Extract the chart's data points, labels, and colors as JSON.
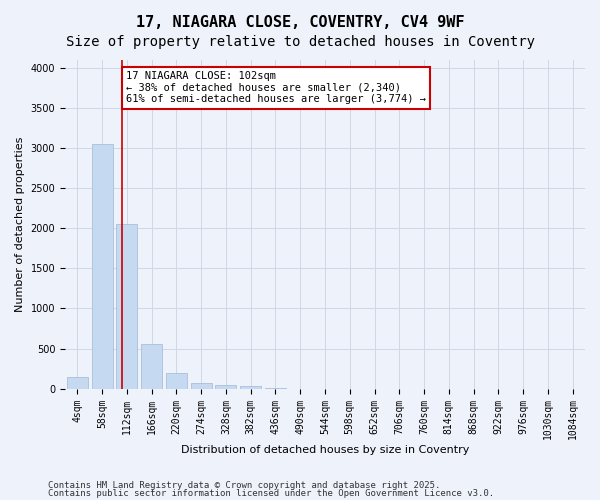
{
  "title1": "17, NIAGARA CLOSE, COVENTRY, CV4 9WF",
  "title2": "Size of property relative to detached houses in Coventry",
  "xlabel": "Distribution of detached houses by size in Coventry",
  "ylabel": "Number of detached properties",
  "bin_labels": [
    "4sqm",
    "58sqm",
    "112sqm",
    "166sqm",
    "220sqm",
    "274sqm",
    "328sqm",
    "382sqm",
    "436sqm",
    "490sqm",
    "544sqm",
    "598sqm",
    "652sqm",
    "706sqm",
    "760sqm",
    "814sqm",
    "868sqm",
    "922sqm",
    "976sqm",
    "1030sqm",
    "1084sqm"
  ],
  "bar_values": [
    150,
    3050,
    2050,
    560,
    190,
    75,
    50,
    30,
    5,
    0,
    0,
    0,
    0,
    0,
    0,
    0,
    0,
    0,
    0,
    0,
    0
  ],
  "bar_color": "#c5d9f0",
  "bar_edge_color": "#a0b8d8",
  "grid_color": "#d0d8e8",
  "background_color": "#eef2fb",
  "property_sqm": 102,
  "annotation_text": "17 NIAGARA CLOSE: 102sqm\n← 38% of detached houses are smaller (2,340)\n61% of semi-detached houses are larger (3,774) →",
  "annotation_box_color": "#ffffff",
  "annotation_box_edge": "#cc0000",
  "line_color": "#cc0000",
  "ylim": [
    0,
    4100
  ],
  "yticks": [
    0,
    500,
    1000,
    1500,
    2000,
    2500,
    3000,
    3500,
    4000
  ],
  "footer1": "Contains HM Land Registry data © Crown copyright and database right 2025.",
  "footer2": "Contains public sector information licensed under the Open Government Licence v3.0.",
  "title1_fontsize": 11,
  "title2_fontsize": 10,
  "axis_fontsize": 8,
  "tick_fontsize": 7,
  "annotation_fontsize": 7.5,
  "footer_fontsize": 6.5
}
